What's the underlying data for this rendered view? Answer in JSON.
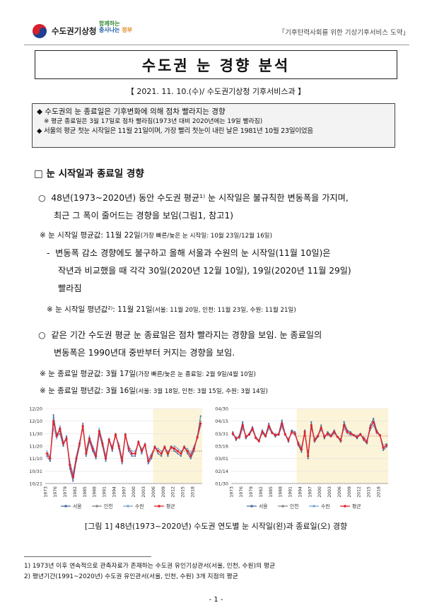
{
  "header": {
    "org_name": "수도권기상청",
    "slogan_logo_top": "함께하는",
    "slogan_logo_mid": "충사나는",
    "slogan_logo_tag": "정부",
    "slogan": "「기후탄력사회를 위한 기상기후서비스 도약」"
  },
  "title": "수도권 눈 경향 분석",
  "dateline": "【 2021. 11. 10.(수)/ 수도권기상청 기후서비스과 】",
  "summary": {
    "line1": "◆ 수도권의 눈 종료일은 기후변화에 의해 점차 빨라지는 경향",
    "line2": "※ 평균 종료일은 3월 17일로 점차 빨라짐(1973년 대비 2020년에는 19일 빨라짐)",
    "line3": "◆ 서울의 평균 첫눈 시작일은 11월 21일이며, 가장 빨리 첫눈이 내린 날은 1981년 10월 23일이었음"
  },
  "section_title": "□ 눈 시작일과 종료일 경향",
  "p1": {
    "marker": "○",
    "line1": "48년(1973~2020년) 동안 수도권 평균¹⁾ 눈 시작일은 불규칙한 변동폭을 가지며,",
    "line2": "최근 그 폭이 줄어드는 경향을 보임(그림1, 참고1)"
  },
  "n1": {
    "mark": "※",
    "main": "눈 시작일 평균값: 11월 22일",
    "small": "(가장 빠른/늦은 눈 시작일: 10월 23일/12월 16일)"
  },
  "p2": {
    "marker": "-",
    "line1": "변동폭 감소 경향에도 불구하고 올해 서울과 수원의 눈 시작일(11월 10일)은",
    "line2": "작년과 비교했을 때 각각 30일(2020년 12월 10일), 19일(2020년 11월 29일)",
    "line3": "빨라짐"
  },
  "n2": {
    "mark": "※",
    "main": "눈 시작일 평년값²⁾: 11월 21일",
    "small": "(서울: 11월 20일, 인천: 11월 23일, 수원: 11월 21일)"
  },
  "p3": {
    "marker": "○",
    "line1": "같은 기간 수도권 평균 눈 종료일은 점차 빨라지는 경향을 보임. 눈 종료일의",
    "line2": "변동폭은 1990년대 중반부터 커지는 경향을 보임."
  },
  "n3": {
    "mark": "※",
    "main": "눈 종료일 평균값: 3월 17일",
    "small": "(가장 빠른/늦은 눈 종료일: 2월 9일/4월 10일)"
  },
  "n4": {
    "mark": "※",
    "main": "눈 종료일 평년값: 3월 16일",
    "small": "(서울: 3월 18일, 인천: 3월 15일, 수원: 3월 14일)"
  },
  "chart_data": [
    {
      "type": "line",
      "title": "",
      "y_ticks": [
        "10/21",
        "10/31",
        "11/10",
        "11/20",
        "11/30",
        "12/10",
        "12/20"
      ],
      "ylim": [
        0,
        60
      ],
      "x_tick_labels": [
        "1973",
        "1976",
        "1979",
        "1982",
        "1985",
        "1988",
        "1991",
        "1994",
        "1997",
        "2000",
        "2003",
        "2006",
        "2009",
        "2012",
        "2015",
        "2018"
      ],
      "x": [
        1973,
        1974,
        1975,
        1976,
        1977,
        1978,
        1979,
        1980,
        1981,
        1982,
        1983,
        1984,
        1985,
        1986,
        1987,
        1988,
        1989,
        1990,
        1991,
        1992,
        1993,
        1994,
        1995,
        1996,
        1997,
        1998,
        1999,
        2000,
        2001,
        2002,
        2003,
        2004,
        2005,
        2006,
        2007,
        2008,
        2009,
        2010,
        2011,
        2012,
        2013,
        2014,
        2015,
        2016,
        2017,
        2018,
        2019,
        2020
      ],
      "shaded_from": 2006,
      "series": [
        {
          "name": "서울",
          "color": "#4a6fa5",
          "values": [
            22,
            18,
            55,
            38,
            40,
            30,
            38,
            12,
            2,
            18,
            30,
            48,
            22,
            34,
            26,
            20,
            40,
            30,
            18,
            35,
            26,
            40,
            28,
            16,
            40,
            26,
            22,
            22,
            34,
            24,
            32,
            16,
            20,
            30,
            24,
            22,
            30,
            22,
            30,
            26,
            24,
            22,
            30,
            24,
            20,
            26,
            38,
            54
          ]
        },
        {
          "name": "인천",
          "color": "#8a8a8a",
          "values": [
            24,
            20,
            50,
            40,
            42,
            32,
            36,
            14,
            6,
            20,
            32,
            46,
            24,
            36,
            28,
            22,
            42,
            32,
            20,
            36,
            28,
            40,
            30,
            18,
            40,
            28,
            24,
            24,
            34,
            26,
            32,
            18,
            22,
            30,
            26,
            24,
            30,
            24,
            30,
            28,
            26,
            24,
            30,
            26,
            22,
            28,
            38,
            50
          ]
        },
        {
          "name": "수원",
          "color": "#7aa7d6",
          "values": [
            26,
            22,
            44,
            36,
            46,
            34,
            34,
            18,
            8,
            22,
            34,
            44,
            26,
            38,
            30,
            24,
            44,
            34,
            22,
            34,
            30,
            38,
            32,
            20,
            38,
            30,
            26,
            26,
            32,
            28,
            30,
            20,
            24,
            28,
            28,
            26,
            28,
            26,
            28,
            30,
            28,
            26,
            28,
            28,
            24,
            30,
            36,
            46
          ]
        },
        {
          "name": "평균",
          "color": "#e0232b",
          "values": [
            24,
            20,
            50,
            38,
            44,
            32,
            36,
            15,
            5,
            20,
            32,
            46,
            24,
            36,
            28,
            22,
            42,
            32,
            20,
            35,
            28,
            39,
            30,
            18,
            39,
            28,
            24,
            24,
            33,
            26,
            31,
            18,
            22,
            29,
            26,
            24,
            29,
            24,
            29,
            28,
            26,
            24,
            29,
            26,
            22,
            28,
            37,
            48
          ]
        }
      ],
      "reference_line": 26
    },
    {
      "type": "line",
      "title": "",
      "y_ticks": [
        "01/30",
        "02/14",
        "03/01",
        "03/16",
        "03/31",
        "04/15",
        "04/30"
      ],
      "ylim": [
        0,
        90
      ],
      "x_tick_labels": [
        "1973",
        "1976",
        "1979",
        "1982",
        "1985",
        "1988",
        "1991",
        "1994",
        "1997",
        "2000",
        "2003",
        "2006",
        "2009",
        "2012",
        "2015",
        "2018"
      ],
      "x": [
        1973,
        1974,
        1975,
        1976,
        1977,
        1978,
        1979,
        1980,
        1981,
        1982,
        1983,
        1984,
        1985,
        1986,
        1987,
        1988,
        1989,
        1990,
        1991,
        1992,
        1993,
        1994,
        1995,
        1996,
        1997,
        1998,
        1999,
        2000,
        2001,
        2002,
        2003,
        2004,
        2005,
        2006,
        2007,
        2008,
        2009,
        2010,
        2011,
        2012,
        2013,
        2014,
        2015,
        2016,
        2017,
        2018,
        2019,
        2020
      ],
      "shaded_from": 1993,
      "series": [
        {
          "name": "서울",
          "color": "#4a6fa5",
          "values": [
            62,
            52,
            58,
            74,
            54,
            60,
            68,
            56,
            52,
            64,
            58,
            72,
            62,
            56,
            60,
            76,
            60,
            50,
            64,
            62,
            46,
            38,
            64,
            30,
            74,
            50,
            56,
            70,
            54,
            62,
            58,
            64,
            56,
            50,
            74,
            64,
            62,
            58,
            54,
            60,
            52,
            48,
            70,
            78,
            64,
            58,
            40,
            44
          ]
        },
        {
          "name": "인천",
          "color": "#8a8a8a",
          "values": [
            60,
            54,
            56,
            70,
            56,
            60,
            66,
            54,
            50,
            62,
            58,
            70,
            62,
            58,
            60,
            72,
            60,
            52,
            62,
            60,
            48,
            40,
            62,
            32,
            70,
            52,
            58,
            68,
            56,
            60,
            58,
            62,
            56,
            52,
            70,
            62,
            60,
            58,
            56,
            60,
            54,
            50,
            68,
            74,
            62,
            58,
            42,
            46
          ]
        },
        {
          "name": "수원",
          "color": "#7aa7d6",
          "values": [
            58,
            56,
            54,
            66,
            58,
            58,
            64,
            56,
            52,
            60,
            56,
            66,
            60,
            60,
            58,
            68,
            58,
            54,
            60,
            58,
            50,
            44,
            60,
            36,
            66,
            54,
            58,
            64,
            58,
            58,
            56,
            60,
            56,
            54,
            66,
            60,
            58,
            58,
            58,
            58,
            56,
            52,
            64,
            70,
            60,
            58,
            46,
            48
          ]
        },
        {
          "name": "평균",
          "color": "#e0232b",
          "values": [
            60,
            54,
            56,
            70,
            56,
            59,
            66,
            55,
            51,
            62,
            57,
            69,
            61,
            58,
            59,
            72,
            59,
            52,
            62,
            60,
            48,
            41,
            62,
            33,
            70,
            52,
            57,
            67,
            56,
            60,
            57,
            62,
            56,
            52,
            70,
            62,
            60,
            58,
            56,
            59,
            54,
            50,
            67,
            74,
            62,
            58,
            43,
            46
          ]
        }
      ],
      "reference_line": 57
    }
  ],
  "legend": [
    "서울",
    "인천",
    "수원",
    "평균"
  ],
  "caption": "[그림 1] 48년(1973~2020년) 수도권 연도별 눈 시작일(왼)과 종료일(오) 경향",
  "footnotes": {
    "f1": "1) 1973년 이후 연속적으로 관측자료가 존재하는 수도권 유인기상관서(서울, 인천, 수원)의 평균",
    "f2": "2) 평년기간(1991~2020년) 수도권 유인관서(서울, 인천, 수원) 3개 지점의 평균"
  },
  "page_number": "- 1 -"
}
